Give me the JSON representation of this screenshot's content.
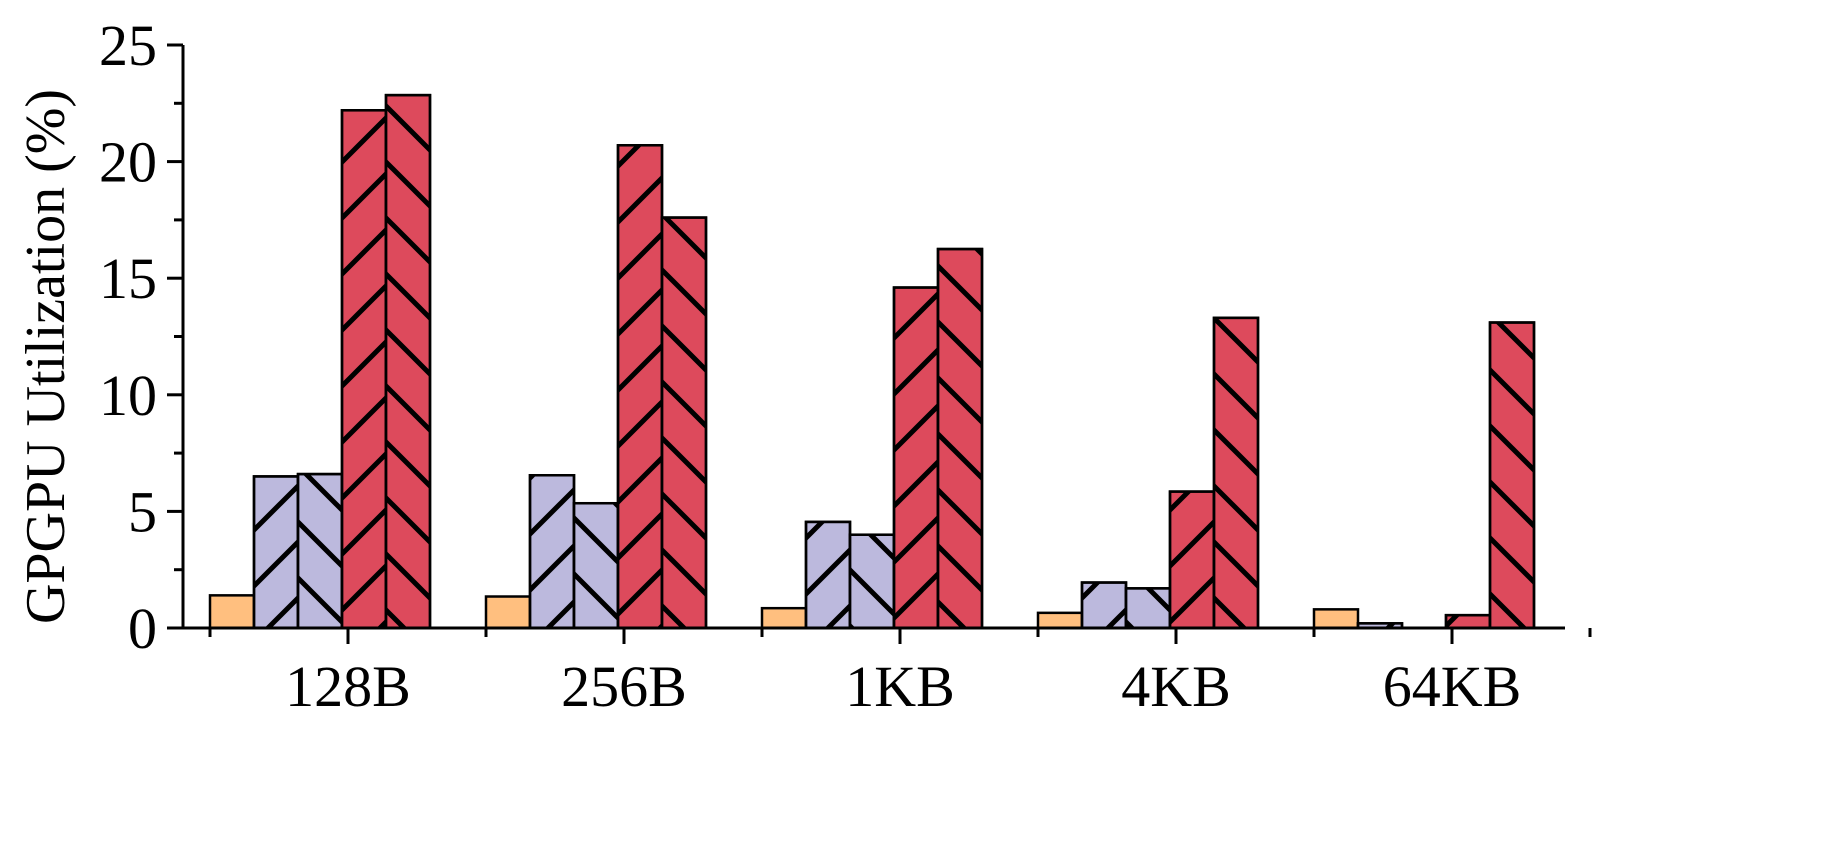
{
  "chart_data": {
    "type": "bar",
    "categories": [
      "128B",
      "256B",
      "1KB",
      "4KB",
      "64KB"
    ],
    "ylabel": "GPGPU Utilization (%)",
    "xlabel": "",
    "ylim": [
      0,
      25
    ],
    "yticks": [
      0,
      5,
      10,
      15,
      20,
      25
    ],
    "grid": false,
    "series": [
      {
        "values": [
          1.4,
          1.35,
          0.85,
          0.65,
          0.8
        ],
        "color": "#FFBF7F",
        "hatch": "none"
      },
      {
        "values": [
          6.5,
          6.55,
          4.55,
          1.95,
          0.2
        ],
        "color": "#BCB9DD",
        "hatch": "forward"
      },
      {
        "values": [
          6.6,
          5.35,
          4.0,
          1.7,
          0.0
        ],
        "color": "#BCB9DD",
        "hatch": "backward"
      },
      {
        "values": [
          22.2,
          20.7,
          14.6,
          5.85,
          0.55
        ],
        "color": "#DD4A5C",
        "hatch": "forward"
      },
      {
        "values": [
          22.85,
          17.6,
          16.25,
          13.3,
          13.1
        ],
        "color": "#DD4A5C",
        "hatch": "backward"
      }
    ]
  }
}
